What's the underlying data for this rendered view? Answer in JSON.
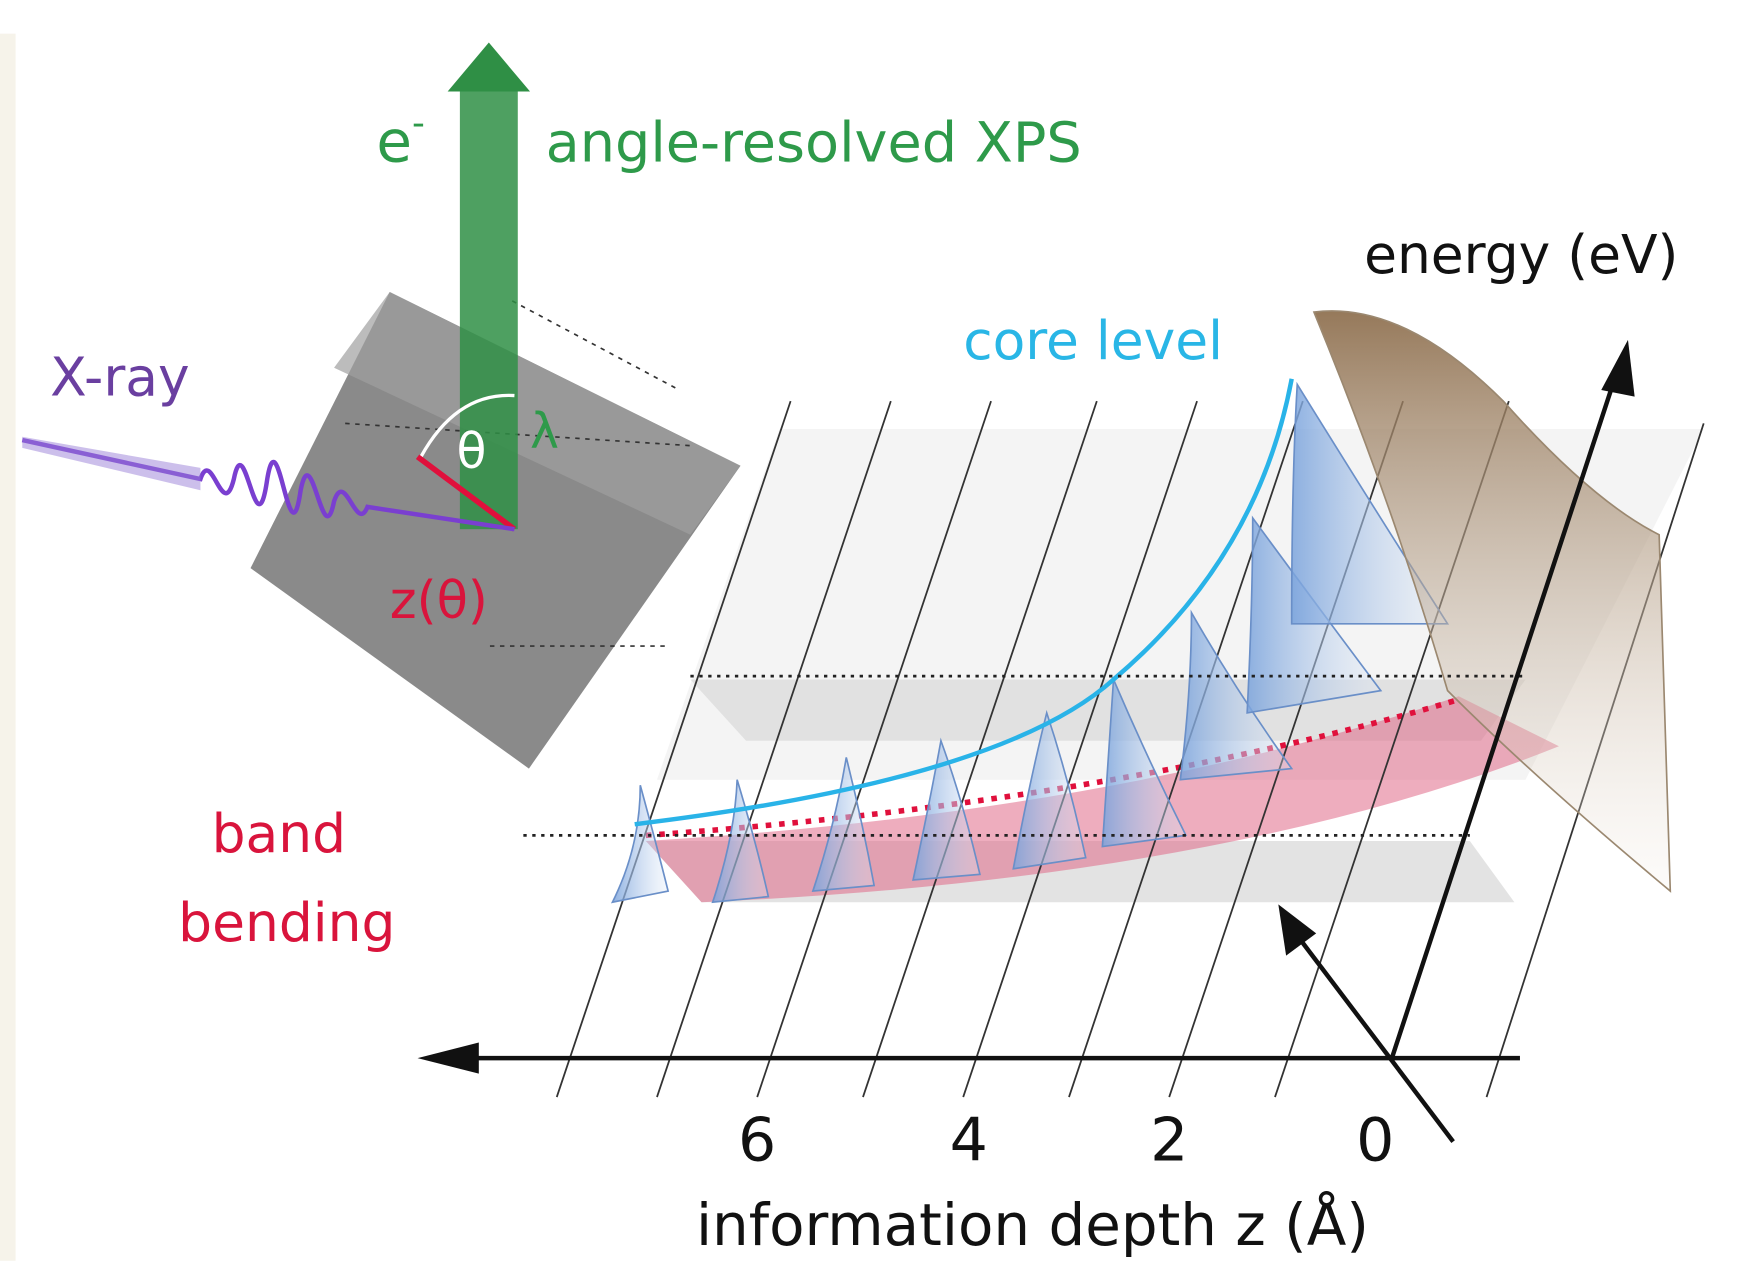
{
  "labels": {
    "electron": {
      "base": "e",
      "sup": "-"
    },
    "method": "angle-resolved XPS",
    "energy_axis": "energy (eV)",
    "xray": "X-ray",
    "core_level": "core level",
    "theta": "θ",
    "lambda": "λ",
    "depth": "z(θ)",
    "band_bending": [
      "band",
      "bending"
    ],
    "depth_ticks": [
      "6",
      "4",
      "2",
      "0"
    ],
    "depth_axis": "information depth z (Å)"
  }
}
